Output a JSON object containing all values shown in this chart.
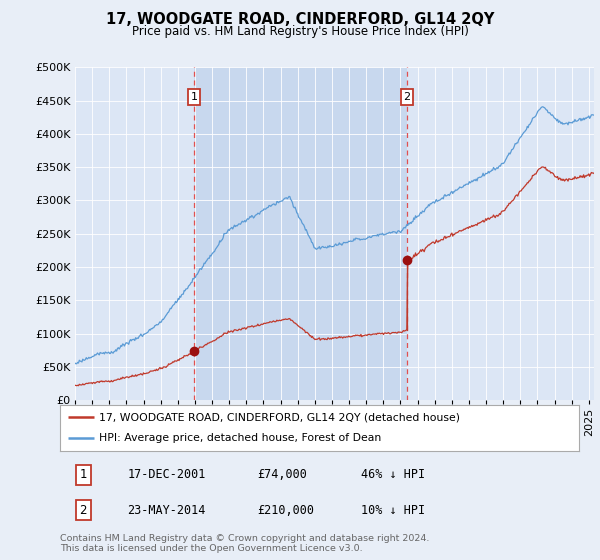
{
  "title": "17, WOODGATE ROAD, CINDERFORD, GL14 2QY",
  "subtitle": "Price paid vs. HM Land Registry's House Price Index (HPI)",
  "ylim": [
    0,
    500000
  ],
  "yticks": [
    0,
    50000,
    100000,
    150000,
    200000,
    250000,
    300000,
    350000,
    400000,
    450000,
    500000
  ],
  "xlim_start": 1995.0,
  "xlim_end": 2025.3,
  "bg_color": "#e8eef7",
  "plot_bg": "#dce6f5",
  "shade_color": "#c8d8ee",
  "hpi_color": "#5b9bd5",
  "price_color": "#c0392b",
  "vline_color": "#e05050",
  "marker_color": "#9b1010",
  "t1": 2001.96,
  "t2": 2014.39,
  "price1": 74000,
  "price2": 210000,
  "legend_label1": "17, WOODGATE ROAD, CINDERFORD, GL14 2QY (detached house)",
  "legend_label2": "HPI: Average price, detached house, Forest of Dean",
  "footnote1": "Contains HM Land Registry data © Crown copyright and database right 2024.",
  "footnote2": "This data is licensed under the Open Government Licence v3.0.",
  "table_row1": [
    "1",
    "17-DEC-2001",
    "£74,000",
    "46% ↓ HPI"
  ],
  "table_row2": [
    "2",
    "23-MAY-2014",
    "£210,000",
    "10% ↓ HPI"
  ]
}
